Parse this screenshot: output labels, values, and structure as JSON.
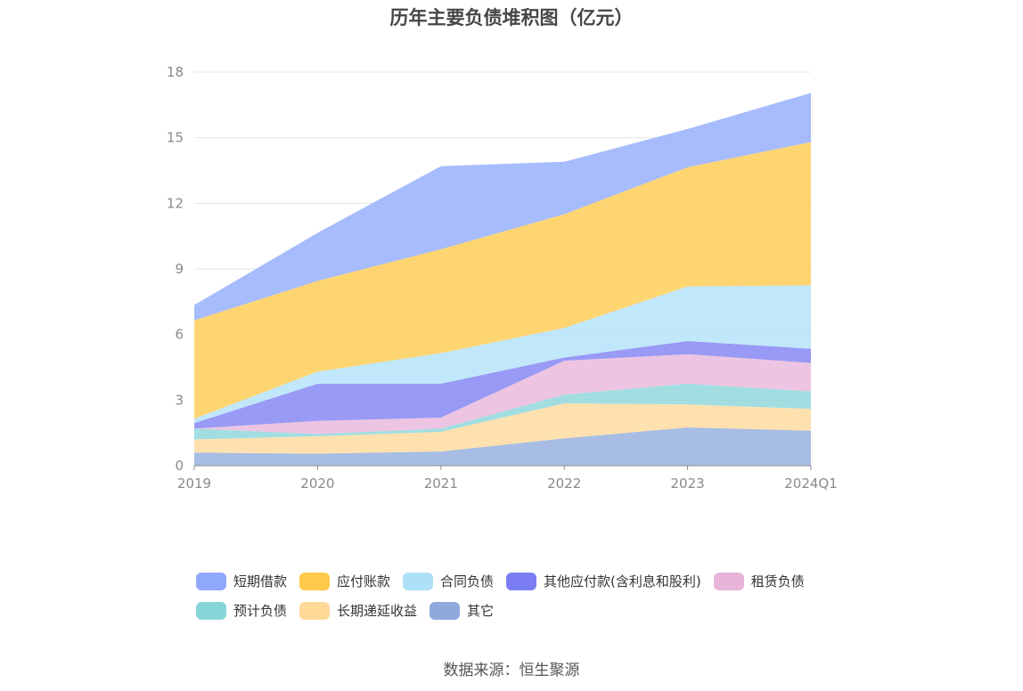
{
  "chart_data": {
    "type": "area",
    "stacked": true,
    "title": "历年主要负债堆积图（亿元）",
    "categories": [
      "2019",
      "2020",
      "2021",
      "2022",
      "2023",
      "2024Q1"
    ],
    "ylim": [
      0,
      18
    ],
    "yticks": [
      "0",
      "3",
      "6",
      "9",
      "12",
      "15",
      "18"
    ],
    "grid": true,
    "legend_position": "bottom",
    "series": [
      {
        "name": "其它",
        "color": "#8eaadb",
        "values": [
          0.6,
          0.55,
          0.65,
          1.25,
          1.75,
          1.6
        ]
      },
      {
        "name": "长期递延收益",
        "color": "#ffd998",
        "values": [
          0.6,
          0.8,
          0.9,
          1.6,
          1.05,
          1.0
        ]
      },
      {
        "name": "预计负债",
        "color": "#88d5d8",
        "values": [
          0.5,
          0.1,
          0.15,
          0.4,
          0.95,
          0.8
        ]
      },
      {
        "name": "租赁负债",
        "color": "#e8b4da",
        "values": [
          0.0,
          0.6,
          0.5,
          1.55,
          1.35,
          1.3
        ]
      },
      {
        "name": "其他应付款(含利息和股利)",
        "color": "#7b7ef2",
        "values": [
          0.25,
          1.7,
          1.55,
          0.15,
          0.6,
          0.65
        ]
      },
      {
        "name": "合同负债",
        "color": "#aee0f8",
        "values": [
          0.2,
          0.55,
          1.4,
          1.35,
          2.5,
          2.9
        ]
      },
      {
        "name": "应付账款",
        "color": "#ffc94a",
        "values": [
          4.5,
          4.15,
          4.75,
          5.2,
          5.45,
          6.55
        ]
      },
      {
        "name": "短期借款",
        "color": "#8ea9fb",
        "values": [
          0.7,
          2.2,
          3.8,
          2.4,
          1.75,
          2.25
        ]
      }
    ]
  },
  "legend": {
    "rows": [
      [
        {
          "label": "短期借款",
          "color": "#8ea9fb"
        },
        {
          "label": "应付账款",
          "color": "#ffc94a"
        },
        {
          "label": "合同负债",
          "color": "#aee0f8"
        },
        {
          "label": "其他应付款(含利息和股利)",
          "color": "#7b7ef2"
        },
        {
          "label": "租赁负债",
          "color": "#e8b4da"
        }
      ],
      [
        {
          "label": "预计负债",
          "color": "#88d5d8"
        },
        {
          "label": "长期递延收益",
          "color": "#ffd998"
        },
        {
          "label": "其它",
          "color": "#8eaadb"
        }
      ]
    ]
  },
  "source": "数据来源：恒生聚源"
}
